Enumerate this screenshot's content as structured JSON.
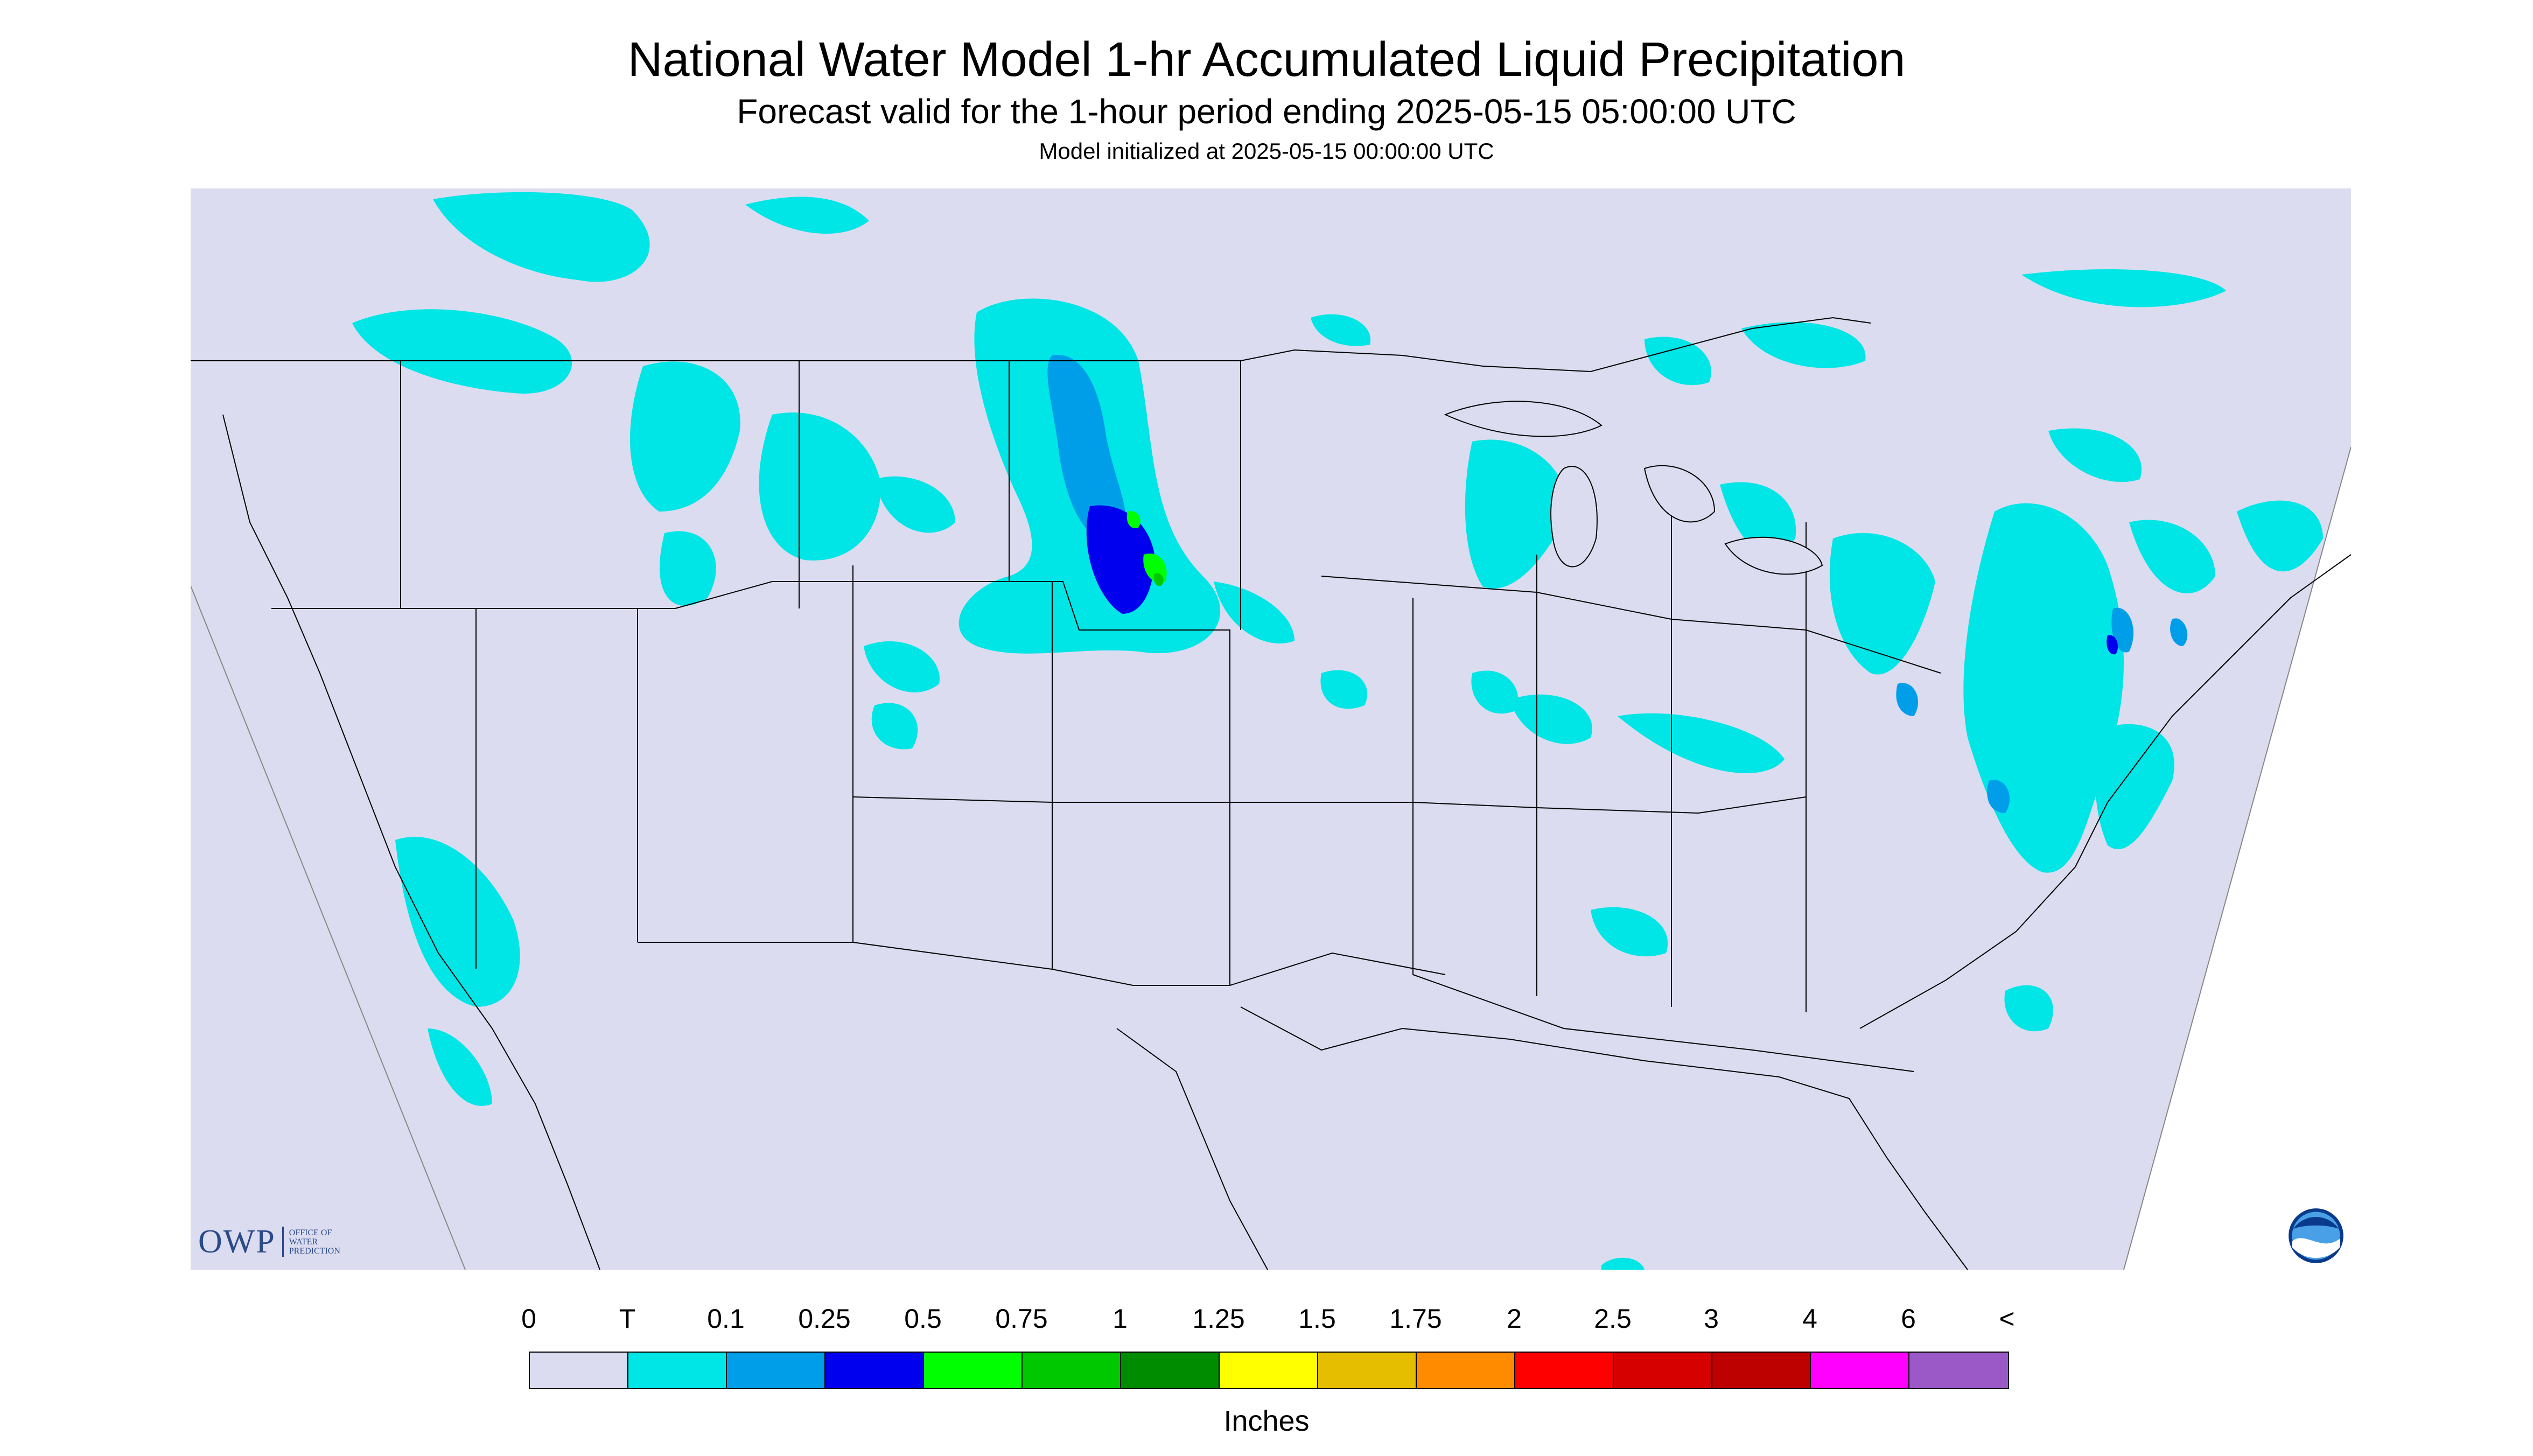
{
  "header": {
    "title": "National Water Model 1-hr Accumulated Liquid Precipitation",
    "subtitle": "Forecast valid for the 1-hour period ending 2025-05-15 05:00:00 UTC",
    "init_note": "Model initialized at 2025-05-15 00:00:00 UTC"
  },
  "logos": {
    "owp_main": "OWP",
    "owp_sub": [
      "OFFICE OF",
      "WATER",
      "PREDICTION"
    ],
    "noaa": "NOAA"
  },
  "legend": {
    "labels": [
      "0",
      "T",
      "0.1",
      "0.25",
      "0.5",
      "0.75",
      "1",
      "1.25",
      "1.5",
      "1.75",
      "2",
      "2.5",
      "3",
      "4",
      "6",
      "<"
    ],
    "colors": [
      "#dcdcf0",
      "#00e5e5",
      "#009ee8",
      "#0000ee",
      "#00ff00",
      "#00c800",
      "#008c00",
      "#ffff00",
      "#e6be00",
      "#ff8c00",
      "#ff0000",
      "#d70000",
      "#bd0000",
      "#ff00ff",
      "#9b59c8"
    ],
    "units": "Inches"
  },
  "map": {
    "background": "#dcdcf0",
    "boundary_color": "#000000"
  }
}
